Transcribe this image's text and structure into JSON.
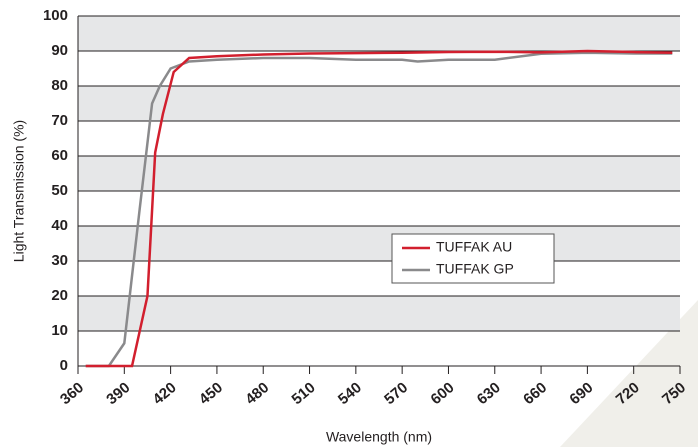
{
  "chart_data": {
    "type": "line",
    "xlabel": "Wavelength (nm)",
    "ylabel": "Light Transmission (%)",
    "xlim": [
      360,
      750
    ],
    "xticks": [
      360,
      390,
      420,
      450,
      480,
      510,
      540,
      570,
      600,
      630,
      660,
      690,
      720,
      750
    ],
    "ylim": [
      0,
      100
    ],
    "yticks": [
      0,
      10,
      20,
      30,
      40,
      50,
      60,
      70,
      80,
      90,
      100
    ],
    "grid": true,
    "legend": "center right",
    "series": [
      {
        "name": "TUFFAK AU",
        "color": "#d21f2e",
        "x": [
          365,
          390,
          395,
          405,
          410,
          415,
          422,
          432,
          450,
          480,
          510,
          540,
          570,
          600,
          630,
          660,
          690,
          720,
          745
        ],
        "values": [
          0,
          0,
          0,
          20,
          61,
          72,
          84,
          88,
          88.5,
          89,
          89.3,
          89.4,
          89.5,
          89.7,
          89.8,
          89.6,
          90,
          89.7,
          89.5
        ]
      },
      {
        "name": "TUFFAK GP",
        "color": "#8a8a8c",
        "x": [
          365,
          380,
          390,
          400,
          408,
          413,
          420,
          432,
          450,
          480,
          510,
          540,
          570,
          580,
          600,
          630,
          660,
          690,
          720,
          745
        ],
        "values": [
          0,
          0,
          6.5,
          45,
          75,
          80,
          85,
          87,
          87.5,
          88,
          88,
          87.5,
          87.5,
          87,
          87.5,
          87.5,
          89.2,
          89.5,
          89.3,
          89.3
        ]
      }
    ]
  }
}
